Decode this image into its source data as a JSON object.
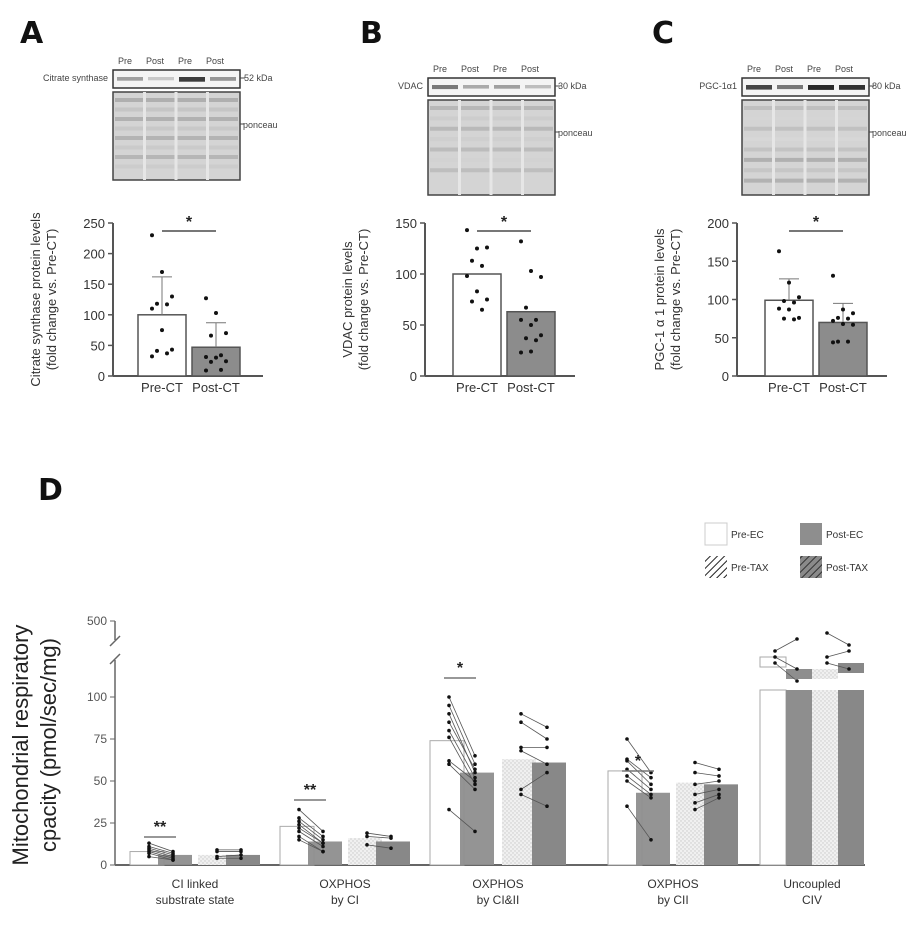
{
  "figure": {
    "panel_labels": [
      "A",
      "B",
      "C",
      "D"
    ]
  },
  "blots": [
    {
      "panel": "A",
      "protein": "Citrate synthase",
      "lanes": [
        "Pre",
        "Post",
        "Pre",
        "Post"
      ],
      "size_marker": "52 kDa",
      "loading_control": "ponceau",
      "band_intensity": [
        0.35,
        0.15,
        0.85,
        0.4
      ]
    },
    {
      "panel": "B",
      "protein": "VDAC",
      "lanes": [
        "Pre",
        "Post",
        "Pre",
        "Post"
      ],
      "size_marker": "30 kDa",
      "loading_control": "ponceau",
      "band_intensity": [
        0.55,
        0.3,
        0.35,
        0.2
      ]
    },
    {
      "panel": "C",
      "protein": "PGC-1α1",
      "lanes": [
        "Pre",
        "Post",
        "Pre",
        "Post"
      ],
      "size_marker": "80 kDa",
      "loading_control": "ponceau",
      "band_intensity": [
        0.8,
        0.55,
        0.95,
        0.9
      ]
    }
  ],
  "chart_data": [
    {
      "panel": "A",
      "type": "bar",
      "title": "",
      "ylabel": "Citrate synthase protein levels (fold change vs. Pre-CT)",
      "xlabel": "",
      "categories": [
        "Pre-CT",
        "Post-CT"
      ],
      "values": [
        100,
        47
      ],
      "sd": [
        62,
        40
      ],
      "ylim": [
        0,
        250
      ],
      "yticks": [
        0,
        50,
        100,
        150,
        200,
        250
      ],
      "points": [
        [
          230,
          170,
          130,
          118,
          117,
          110,
          75,
          43,
          41,
          37,
          32
        ],
        [
          127,
          103,
          70,
          66,
          34,
          31,
          30,
          24,
          23,
          10,
          9
        ]
      ],
      "significance": "*",
      "colors": [
        "#ffffff",
        "#8c8c8c"
      ]
    },
    {
      "panel": "B",
      "type": "bar",
      "title": "",
      "ylabel": "VDAC protein levels (fold change vs. Pre-CT)",
      "xlabel": "",
      "categories": [
        "Pre-CT",
        "Post-CT"
      ],
      "values": [
        100,
        63
      ],
      "sd": [
        0,
        0
      ],
      "ylim": [
        0,
        150
      ],
      "yticks": [
        0,
        50,
        100,
        150
      ],
      "points": [
        [
          143,
          125,
          126,
          113,
          108,
          98,
          83,
          75,
          73,
          65
        ],
        [
          132,
          103,
          97,
          67,
          55,
          55,
          50,
          40,
          37,
          35,
          23,
          24
        ]
      ],
      "significance": "*",
      "colors": [
        "#ffffff",
        "#8c8c8c"
      ]
    },
    {
      "panel": "C",
      "type": "bar",
      "title": "",
      "ylabel": "PGC-1 α 1 protein levels (fold change vs. Pre-CT)",
      "xlabel": "",
      "categories": [
        "Pre-CT",
        "Post-CT"
      ],
      "values": [
        99,
        70
      ],
      "sd": [
        28,
        25
      ],
      "ylim": [
        0,
        200
      ],
      "yticks": [
        0,
        50,
        100,
        150,
        200
      ],
      "points": [
        [
          163,
          122,
          103,
          98,
          96,
          88,
          87,
          76,
          75,
          74
        ],
        [
          131,
          87,
          82,
          76,
          75,
          72,
          68,
          67,
          45,
          45,
          44
        ]
      ],
      "significance": "*",
      "colors": [
        "#ffffff",
        "#8c8c8c"
      ]
    },
    {
      "panel": "D",
      "type": "bar",
      "title": "",
      "ylabel": "Mitochondrial respiratory cpacity (pmol/sec/mg)",
      "xlabel": "",
      "categories": [
        "CI linked substrate state",
        "OXPHOS by CI",
        "OXPHOS by CI&II",
        "OXPHOS by CII",
        "Uncoupled CIV"
      ],
      "category_lines": [
        [
          "CI linked",
          "substrate state"
        ],
        [
          "OXPHOS",
          "by CI"
        ],
        [
          "OXPHOS",
          "by CI&II"
        ],
        [
          "OXPHOS",
          "by CII"
        ],
        [
          "Uncoupled",
          "CIV"
        ]
      ],
      "yticks": [
        0,
        25,
        50,
        75,
        100,
        500
      ],
      "ylim": [
        0,
        500
      ],
      "axis_break": [
        110,
        480
      ],
      "legend": [
        {
          "name": "Pre-EC",
          "style": "open"
        },
        {
          "name": "Post-EC",
          "style": "solid"
        },
        {
          "name": "Pre-TAX",
          "style": "hatched-light"
        },
        {
          "name": "Post-TAX",
          "style": "hatched-dark"
        }
      ],
      "legend_position": "top-right",
      "series": [
        {
          "name": "Pre-EC",
          "values": [
            8,
            23,
            74,
            56,
            440
          ]
        },
        {
          "name": "Post-EC",
          "values": [
            6,
            14,
            55,
            43,
            420
          ]
        },
        {
          "name": "Pre-TAX",
          "values": [
            6,
            16,
            63,
            49,
            420
          ]
        },
        {
          "name": "Post-TAX",
          "values": [
            6,
            14,
            61,
            48,
            430
          ]
        }
      ],
      "paired_points": [
        {
          "group": 0,
          "pair": "EC",
          "pre": [
            13,
            11,
            10,
            9,
            8,
            7,
            5
          ],
          "post": [
            8,
            7,
            6,
            5,
            4,
            3,
            3
          ]
        },
        {
          "group": 0,
          "pair": "TAX",
          "pre": [
            9,
            8,
            5,
            4
          ],
          "post": [
            9,
            8,
            6,
            4
          ]
        },
        {
          "group": 1,
          "pair": "EC",
          "pre": [
            33,
            28,
            26,
            24,
            22,
            20,
            17,
            15
          ],
          "post": [
            20,
            17,
            15,
            13,
            13,
            11,
            8,
            8
          ]
        },
        {
          "group": 1,
          "pair": "TAX",
          "pre": [
            19,
            17,
            12
          ],
          "post": [
            17,
            16,
            10
          ]
        },
        {
          "group": 2,
          "pair": "EC",
          "pre": [
            100,
            95,
            90,
            85,
            80,
            76,
            62,
            60,
            33
          ],
          "post": [
            65,
            60,
            55,
            57,
            52,
            48,
            50,
            45,
            20
          ]
        },
        {
          "group": 2,
          "pair": "TAX",
          "pre": [
            90,
            85,
            70,
            68,
            45,
            42
          ],
          "post": [
            82,
            75,
            70,
            60,
            55,
            35
          ]
        },
        {
          "group": 3,
          "pair": "EC",
          "pre": [
            75,
            63,
            62,
            57,
            53,
            50,
            35
          ],
          "post": [
            55,
            52,
            48,
            45,
            42,
            40,
            15
          ]
        },
        {
          "group": 3,
          "pair": "TAX",
          "pre": [
            61,
            55,
            48,
            42,
            37,
            33
          ],
          "post": [
            57,
            53,
            50,
            45,
            42,
            40
          ]
        },
        {
          "group": 4,
          "pair": "EC",
          "pre": [
            450,
            440,
            430
          ],
          "post": [
            470,
            420,
            400
          ]
        },
        {
          "group": 4,
          "pair": "TAX",
          "pre": [
            480,
            440,
            430
          ],
          "post": [
            460,
            450,
            420
          ]
        }
      ],
      "significance": [
        {
          "group": 0,
          "label": "**"
        },
        {
          "group": 1,
          "label": "**"
        },
        {
          "group": 2,
          "label": "*"
        },
        {
          "group": 3,
          "label": "*"
        }
      ],
      "colors": {
        "open": "#ffffff",
        "solid": "#8e8e8e",
        "hatched_light": "#e8e8e8",
        "hatched_dark": "#7a7a7a"
      }
    }
  ]
}
